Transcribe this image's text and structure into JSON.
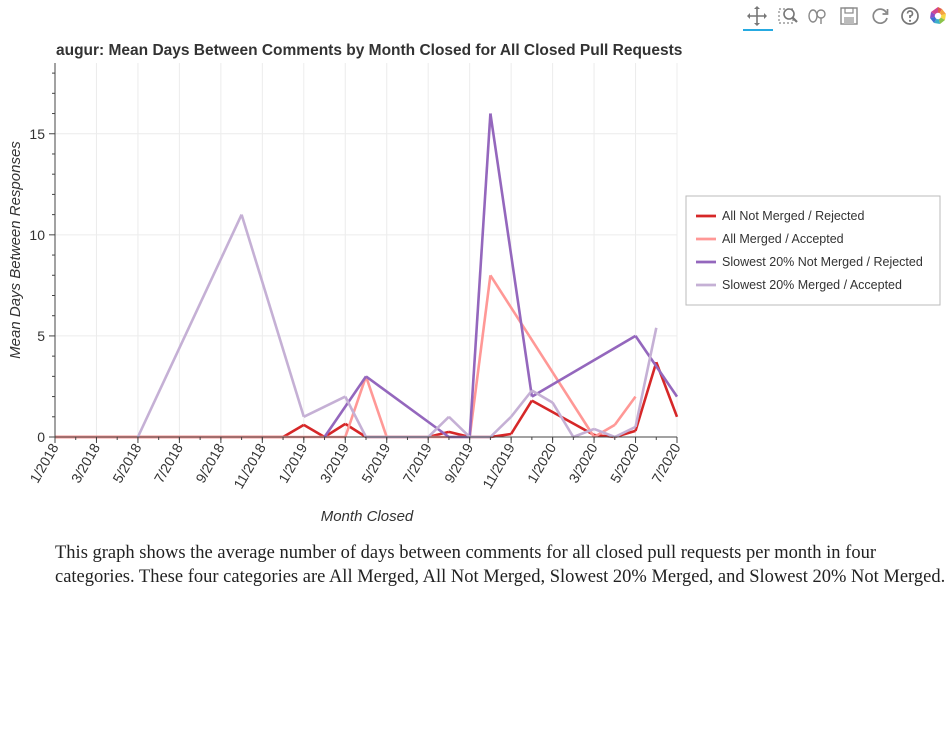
{
  "toolbar": {
    "tools": [
      "pan-icon",
      "box-zoom-icon",
      "wheel-zoom-icon",
      "save-icon",
      "reset-icon",
      "help-icon",
      "bokeh-logo-icon"
    ],
    "active_color": "#26aae1"
  },
  "chart_data": {
    "type": "line",
    "title": "augur: Mean Days Between Comments by Month Closed for All Closed Pull Requests",
    "xlabel": "Month Closed",
    "ylabel": "Mean Days Between Responses",
    "xlim": [
      "2018-01",
      "2020-07"
    ],
    "ylim": [
      0,
      18.5
    ],
    "x_ticks": [
      "1/2018",
      "3/2018",
      "5/2018",
      "7/2018",
      "9/2018",
      "11/2018",
      "1/2019",
      "3/2019",
      "5/2019",
      "7/2019",
      "9/2019",
      "11/2019",
      "1/2020",
      "3/2020",
      "5/2020",
      "7/2020"
    ],
    "y_ticks": [
      0,
      5,
      10,
      15
    ],
    "grid": true,
    "legend_position": "right",
    "series": [
      {
        "name": "All Not Merged / Rejected",
        "color": "#d62728",
        "points": [
          [
            "2018-01",
            0
          ],
          [
            "2018-02",
            0
          ],
          [
            "2018-11",
            0
          ],
          [
            "2018-12",
            0
          ],
          [
            "2019-01",
            0.6
          ],
          [
            "2019-02",
            0
          ],
          [
            "2019-03",
            0.65
          ],
          [
            "2019-04",
            0
          ],
          [
            "2019-05",
            0
          ],
          [
            "2019-06",
            0
          ],
          [
            "2019-07",
            0
          ],
          [
            "2019-08",
            0.25
          ],
          [
            "2019-09",
            0
          ],
          [
            "2019-10",
            0
          ],
          [
            "2019-11",
            0.15
          ],
          [
            "2019-12",
            1.8
          ],
          [
            "2020-03",
            0.1
          ],
          [
            "2020-04",
            0
          ],
          [
            "2020-05",
            0.3
          ],
          [
            "2020-06",
            3.7
          ],
          [
            "2020-07",
            1.0
          ]
        ]
      },
      {
        "name": "All Merged / Accepted",
        "color": "#ff9896",
        "points": [
          [
            "2018-01",
            0
          ],
          [
            "2018-02",
            0
          ],
          [
            "2018-03",
            0
          ],
          [
            "2018-04",
            0
          ],
          [
            "2018-05",
            0
          ],
          [
            "2018-06",
            0
          ],
          [
            "2018-11",
            0
          ],
          [
            "2018-12",
            0
          ],
          [
            "2019-01",
            0
          ],
          [
            "2019-02",
            0
          ],
          [
            "2019-03",
            0
          ],
          [
            "2019-04",
            3.0
          ],
          [
            "2019-05",
            0
          ],
          [
            "2019-06",
            0
          ],
          [
            "2019-07",
            0
          ],
          [
            "2019-08",
            0
          ],
          [
            "2019-09",
            0
          ],
          [
            "2019-10",
            8.0
          ],
          [
            "2020-03",
            0
          ],
          [
            "2020-04",
            0.6
          ],
          [
            "2020-05",
            2.0
          ]
        ]
      },
      {
        "name": "Slowest 20% Not Merged / Rejected",
        "color": "#9467bd",
        "points": [
          [
            "2019-02",
            0
          ],
          [
            "2019-04",
            3.0
          ],
          [
            "2019-08",
            0
          ],
          [
            "2019-09",
            0
          ],
          [
            "2019-10",
            16.0
          ],
          [
            "2019-12",
            2.0
          ],
          [
            "2020-05",
            5.0
          ],
          [
            "2020-07",
            2.0
          ]
        ]
      },
      {
        "name": "Slowest 20% Merged / Accepted",
        "color": "#c5b0d5",
        "points": [
          [
            "2018-05",
            0
          ],
          [
            "2018-10",
            11.0
          ],
          [
            "2019-01",
            1.0
          ],
          [
            "2019-03",
            2.0
          ],
          [
            "2019-04",
            0
          ],
          [
            "2019-07",
            0
          ],
          [
            "2019-08",
            1.0
          ],
          [
            "2019-09",
            0
          ],
          [
            "2019-10",
            0
          ],
          [
            "2019-11",
            1.0
          ],
          [
            "2019-12",
            2.3
          ],
          [
            "2020-01",
            1.7
          ],
          [
            "2020-02",
            0
          ],
          [
            "2020-03",
            0.4
          ],
          [
            "2020-04",
            0
          ],
          [
            "2020-05",
            0.5
          ],
          [
            "2020-06",
            5.4
          ]
        ]
      }
    ]
  },
  "description": "This graph shows the average number of days between comments for all closed pull requests per month in four categories. These four categories are All Merged, All Not Merged, Slowest 20% Merged, and Slowest 20% Not Merged."
}
